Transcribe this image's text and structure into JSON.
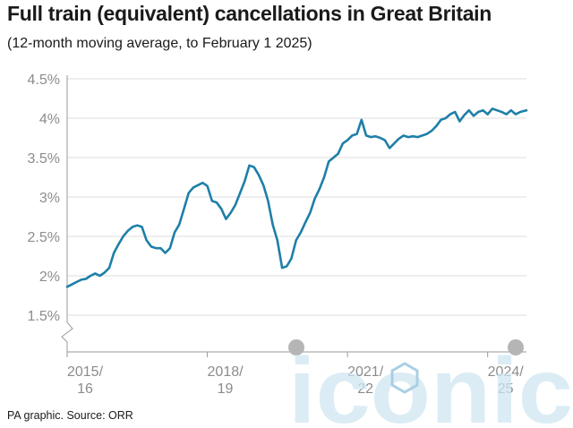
{
  "header": {
    "title": "Full train (equivalent) cancellations in Great Britain",
    "subtitle": "(12-month moving average, to February 1 2025)"
  },
  "footer": {
    "source": "PA graphic. Source: ORR"
  },
  "watermark": {
    "text": "iconic",
    "color": "#cfe6f2"
  },
  "chart_data": {
    "type": "line",
    "title": "Full train (equivalent) cancellations in Great Britain",
    "subtitle": "(12-month moving average, to February 1 2025)",
    "xlabel": "",
    "ylabel": "",
    "ylim": [
      1.5,
      4.5
    ],
    "y_ticks": [
      {
        "value": 1.5,
        "label": "1.5%"
      },
      {
        "value": 2.0,
        "label": "2%"
      },
      {
        "value": 2.5,
        "label": "2.5%"
      },
      {
        "value": 3.0,
        "label": "3%"
      },
      {
        "value": 3.5,
        "label": "3.5%"
      },
      {
        "value": 4.0,
        "label": "4%"
      },
      {
        "value": 4.5,
        "label": "4.5%"
      }
    ],
    "x_ticks": [
      {
        "value": 2015.25,
        "line1": "2015/",
        "line2": "16"
      },
      {
        "value": 2018.25,
        "line1": "2018/",
        "line2": "19"
      },
      {
        "value": 2021.25,
        "line1": "2021/",
        "line2": "22"
      },
      {
        "value": 2024.25,
        "line1": "2024/",
        "line2": "25"
      }
    ],
    "xlim": [
      2015.25,
      2025.08
    ],
    "axis_break": true,
    "grid": true,
    "line_color": "#1e7fa8",
    "series": [
      {
        "x": [
          2015.25,
          2015.35,
          2015.45,
          2015.55,
          2015.65,
          2015.75,
          2015.85,
          2015.95,
          2016.05,
          2016.15,
          2016.25,
          2016.35,
          2016.45,
          2016.55,
          2016.65,
          2016.75,
          2016.85,
          2016.95,
          2017.05,
          2017.15,
          2017.25,
          2017.35,
          2017.45,
          2017.55,
          2017.65,
          2017.75,
          2017.85,
          2017.95,
          2018.05,
          2018.15,
          2018.25,
          2018.35,
          2018.45,
          2018.55,
          2018.65,
          2018.75,
          2018.85,
          2018.95,
          2019.05,
          2019.15,
          2019.25,
          2019.35,
          2019.45,
          2019.55,
          2019.65,
          2019.75,
          2019.85,
          2019.95,
          2020.05,
          2020.15,
          2020.25,
          2020.35,
          2020.45,
          2020.55,
          2020.65,
          2020.75,
          2020.85,
          2020.95,
          2021.05,
          2021.15,
          2021.25,
          2021.35,
          2021.45,
          2021.55,
          2021.65,
          2021.75,
          2021.85,
          2021.95,
          2022.05,
          2022.15,
          2022.25,
          2022.35,
          2022.45,
          2022.55,
          2022.65,
          2022.75,
          2022.85,
          2022.95,
          2023.05,
          2023.15,
          2023.25,
          2023.35,
          2023.45,
          2023.55,
          2023.65,
          2023.75,
          2023.85,
          2023.95,
          2024.05,
          2024.15,
          2024.25,
          2024.35,
          2024.45,
          2024.55,
          2024.65,
          2024.75,
          2024.85,
          2024.95,
          2025.08
        ],
        "values": [
          1.86,
          1.89,
          1.92,
          1.95,
          1.96,
          2.0,
          2.03,
          2.0,
          2.04,
          2.1,
          2.29,
          2.4,
          2.5,
          2.57,
          2.62,
          2.64,
          2.62,
          2.45,
          2.37,
          2.35,
          2.35,
          2.29,
          2.35,
          2.55,
          2.65,
          2.85,
          3.05,
          3.12,
          3.15,
          3.18,
          3.14,
          2.95,
          2.93,
          2.85,
          2.72,
          2.8,
          2.9,
          3.05,
          3.2,
          3.4,
          3.38,
          3.28,
          3.15,
          2.95,
          2.65,
          2.45,
          2.1,
          2.12,
          2.22,
          2.45,
          2.55,
          2.68,
          2.8,
          2.98,
          3.1,
          3.25,
          3.45,
          3.5,
          3.55,
          3.68,
          3.72,
          3.78,
          3.8,
          3.98,
          3.78,
          3.76,
          3.77,
          3.75,
          3.72,
          3.62,
          3.68,
          3.74,
          3.78,
          3.76,
          3.77,
          3.76,
          3.78,
          3.8,
          3.84,
          3.9,
          3.98,
          4.0,
          4.05,
          4.08,
          3.96,
          4.04,
          4.1,
          4.03,
          4.08,
          4.1,
          4.05,
          4.12,
          4.1,
          4.08,
          4.05,
          4.1,
          4.05,
          4.08,
          4.1
        ]
      }
    ]
  }
}
